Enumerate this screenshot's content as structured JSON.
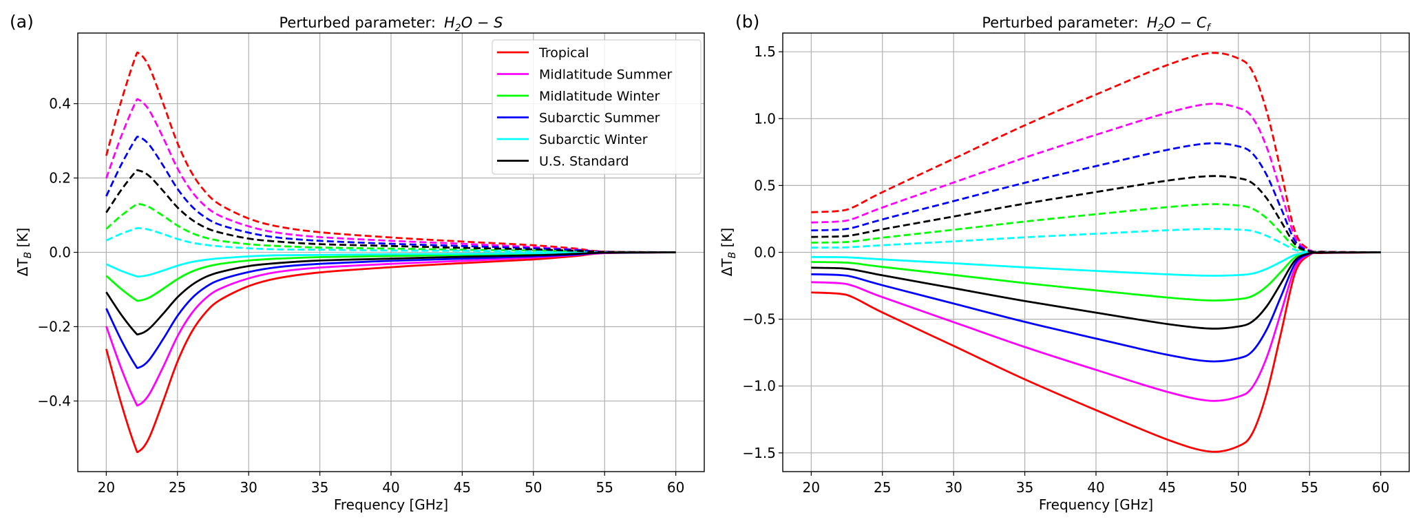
{
  "chart_data": [
    {
      "type": "line",
      "panel_label": "(a)",
      "title": {
        "prefix": "Perturbed parameter:",
        "param_base": "H",
        "param_sub": "2",
        "param_rest": "O − S",
        "param_sub2": ""
      },
      "xlabel": "Frequency [GHz]",
      "ylabel": {
        "main": "ΔT",
        "sub": "B",
        "unit": " [K]"
      },
      "xlim": [
        18,
        62
      ],
      "ylim": [
        -0.59,
        0.59
      ],
      "xticks": [
        20,
        25,
        30,
        35,
        40,
        45,
        50,
        55,
        60
      ],
      "xtick_labels": [
        "20",
        "25",
        "30",
        "35",
        "40",
        "45",
        "50",
        "55",
        "60"
      ],
      "yticks": [
        -0.4,
        -0.2,
        0.0,
        0.2,
        0.4
      ],
      "ytick_labels": [
        "−0.4",
        "−0.2",
        "0.0",
        "0.2",
        "0.4"
      ],
      "grid": true,
      "legend": {
        "placement": "top-right"
      },
      "note": "dashed = positive perturbation, solid = negative perturbation",
      "x": [
        20,
        21,
        22,
        22.3,
        23,
        24,
        25,
        26,
        27,
        28,
        30,
        32,
        35,
        40,
        45,
        50,
        53,
        55,
        60
      ],
      "series": [
        {
          "name": "Tropical",
          "color": "#ff0000",
          "dashed": [
            0.26,
            0.4,
            0.52,
            0.535,
            0.5,
            0.4,
            0.294,
            0.214,
            0.161,
            0.128,
            0.091,
            0.07,
            0.054,
            0.04,
            0.029,
            0.019,
            0.01,
            0.002,
            0
          ],
          "solid": [
            -0.26,
            -0.4,
            -0.52,
            -0.535,
            -0.5,
            -0.4,
            -0.294,
            -0.214,
            -0.161,
            -0.128,
            -0.091,
            -0.07,
            -0.054,
            -0.04,
            -0.029,
            -0.019,
            -0.01,
            -0.002,
            0
          ]
        },
        {
          "name": "Midlatitude Summer",
          "color": "#ff00ff",
          "dashed": [
            0.199,
            0.307,
            0.399,
            0.41,
            0.383,
            0.308,
            0.226,
            0.164,
            0.123,
            0.098,
            0.07,
            0.053,
            0.041,
            0.031,
            0.023,
            0.014,
            0.007,
            0.002,
            0
          ],
          "solid": [
            -0.199,
            -0.307,
            -0.399,
            -0.41,
            -0.383,
            -0.308,
            -0.226,
            -0.164,
            -0.123,
            -0.098,
            -0.07,
            -0.053,
            -0.041,
            -0.031,
            -0.023,
            -0.014,
            -0.007,
            -0.002,
            0
          ]
        },
        {
          "name": "Midlatitude Winter",
          "color": "#00ff00",
          "dashed": [
            0.063,
            0.097,
            0.126,
            0.13,
            0.122,
            0.098,
            0.072,
            0.052,
            0.039,
            0.031,
            0.022,
            0.017,
            0.013,
            0.01,
            0.007,
            0.005,
            0.002,
            0.001,
            0
          ],
          "solid": [
            -0.063,
            -0.097,
            -0.126,
            -0.13,
            -0.122,
            -0.098,
            -0.072,
            -0.052,
            -0.039,
            -0.031,
            -0.022,
            -0.017,
            -0.013,
            -0.01,
            -0.007,
            -0.005,
            -0.002,
            -0.001,
            0
          ]
        },
        {
          "name": "Subarctic Summer",
          "color": "#0000ff",
          "dashed": [
            0.151,
            0.232,
            0.301,
            0.31,
            0.29,
            0.233,
            0.171,
            0.124,
            0.093,
            0.074,
            0.053,
            0.04,
            0.031,
            0.023,
            0.017,
            0.011,
            0.006,
            0.001,
            0
          ],
          "solid": [
            -0.151,
            -0.232,
            -0.301,
            -0.31,
            -0.29,
            -0.233,
            -0.171,
            -0.124,
            -0.093,
            -0.074,
            -0.053,
            -0.04,
            -0.031,
            -0.023,
            -0.017,
            -0.011,
            -0.006,
            -0.001,
            0
          ]
        },
        {
          "name": "Subarctic Winter",
          "color": "#00ffff",
          "dashed": [
            0.032,
            0.049,
            0.063,
            0.065,
            0.061,
            0.049,
            0.036,
            0.026,
            0.02,
            0.016,
            0.011,
            0.008,
            0.007,
            0.005,
            0.004,
            0.002,
            0.001,
            0,
            0
          ],
          "solid": [
            -0.032,
            -0.049,
            -0.063,
            -0.065,
            -0.061,
            -0.049,
            -0.036,
            -0.026,
            -0.02,
            -0.016,
            -0.011,
            -0.008,
            -0.007,
            -0.005,
            -0.004,
            -0.002,
            -0.001,
            0,
            0
          ]
        },
        {
          "name": "U.S. Standard",
          "color": "#000000",
          "dashed": [
            0.107,
            0.165,
            0.214,
            0.22,
            0.206,
            0.165,
            0.121,
            0.088,
            0.066,
            0.053,
            0.037,
            0.029,
            0.022,
            0.017,
            0.012,
            0.008,
            0.004,
            0.001,
            0
          ],
          "solid": [
            -0.107,
            -0.165,
            -0.214,
            -0.22,
            -0.206,
            -0.165,
            -0.121,
            -0.088,
            -0.066,
            -0.053,
            -0.037,
            -0.029,
            -0.022,
            -0.017,
            -0.012,
            -0.008,
            -0.004,
            -0.001,
            0
          ]
        }
      ]
    },
    {
      "type": "line",
      "panel_label": "(b)",
      "title": {
        "prefix": "Perturbed parameter:",
        "param_base": "H",
        "param_sub": "2",
        "param_rest": "O − C",
        "param_sub2": "f"
      },
      "xlabel": "Frequency [GHz]",
      "ylabel": {
        "main": "ΔT",
        "sub": "B",
        "unit": " [K]"
      },
      "xlim": [
        18,
        62
      ],
      "ylim": [
        -1.64,
        1.64
      ],
      "xticks": [
        20,
        25,
        30,
        35,
        40,
        45,
        50,
        55,
        60
      ],
      "xtick_labels": [
        "20",
        "25",
        "30",
        "35",
        "40",
        "45",
        "50",
        "55",
        "60"
      ],
      "yticks": [
        -1.5,
        -1.0,
        -0.5,
        0.0,
        0.5,
        1.0,
        1.5
      ],
      "ytick_labels": [
        "−1.5",
        "−1.0",
        "−0.5",
        "0.0",
        "0.5",
        "1.0",
        "1.5"
      ],
      "grid": true,
      "x": [
        20,
        22,
        23,
        25,
        30,
        35,
        40,
        45,
        48,
        50,
        51,
        52,
        53,
        54,
        55,
        56,
        60
      ],
      "series": [
        {
          "name": "Tropical",
          "color": "#ff0000",
          "dashed": [
            0.3,
            0.31,
            0.34,
            0.45,
            0.7,
            0.95,
            1.18,
            1.4,
            1.49,
            1.45,
            1.35,
            1.05,
            0.6,
            0.15,
            0.02,
            0.005,
            0
          ],
          "solid": [
            -0.3,
            -0.31,
            -0.34,
            -0.45,
            -0.7,
            -0.95,
            -1.18,
            -1.4,
            -1.49,
            -1.45,
            -1.35,
            -1.05,
            -0.6,
            -0.15,
            -0.02,
            -0.005,
            0
          ]
        },
        {
          "name": "Midlatitude Summer",
          "color": "#ff00ff",
          "dashed": [
            0.223,
            0.231,
            0.253,
            0.335,
            0.522,
            0.708,
            0.879,
            1.043,
            1.11,
            1.08,
            1.006,
            0.783,
            0.447,
            0.112,
            0.014,
            0.003,
            0
          ],
          "solid": [
            -0.223,
            -0.231,
            -0.253,
            -0.335,
            -0.522,
            -0.708,
            -0.879,
            -1.043,
            -1.11,
            -1.08,
            -1.006,
            -0.783,
            -0.447,
            -0.112,
            -0.014,
            -0.003,
            0
          ]
        },
        {
          "name": "Midlatitude Winter",
          "color": "#00ff00",
          "dashed": [
            0.072,
            0.075,
            0.082,
            0.109,
            0.169,
            0.23,
            0.285,
            0.338,
            0.36,
            0.35,
            0.326,
            0.254,
            0.145,
            0.036,
            0.005,
            0.001,
            0
          ],
          "solid": [
            -0.072,
            -0.075,
            -0.082,
            -0.109,
            -0.169,
            -0.23,
            -0.285,
            -0.338,
            -0.36,
            -0.35,
            -0.326,
            -0.254,
            -0.145,
            -0.036,
            -0.005,
            -0.001,
            0
          ]
        },
        {
          "name": "Subarctic Summer",
          "color": "#0000ff",
          "dashed": [
            0.164,
            0.17,
            0.186,
            0.246,
            0.383,
            0.52,
            0.645,
            0.766,
            0.815,
            0.793,
            0.738,
            0.575,
            0.328,
            0.082,
            0.011,
            0.002,
            0
          ],
          "solid": [
            -0.164,
            -0.17,
            -0.186,
            -0.246,
            -0.383,
            -0.52,
            -0.645,
            -0.766,
            -0.815,
            -0.793,
            -0.738,
            -0.575,
            -0.328,
            -0.082,
            -0.011,
            -0.002,
            0
          ]
        },
        {
          "name": "Subarctic Winter",
          "color": "#00ffff",
          "dashed": [
            0.035,
            0.036,
            0.04,
            0.053,
            0.082,
            0.112,
            0.139,
            0.165,
            0.175,
            0.17,
            0.159,
            0.123,
            0.071,
            0.018,
            0.002,
            0.001,
            0
          ],
          "solid": [
            -0.035,
            -0.036,
            -0.04,
            -0.053,
            -0.082,
            -0.112,
            -0.139,
            -0.165,
            -0.175,
            -0.17,
            -0.159,
            -0.123,
            -0.071,
            -0.018,
            -0.002,
            -0.001,
            0
          ]
        },
        {
          "name": "U.S. Standard",
          "color": "#000000",
          "dashed": [
            0.115,
            0.119,
            0.13,
            0.172,
            0.268,
            0.364,
            0.451,
            0.536,
            0.57,
            0.555,
            0.516,
            0.402,
            0.23,
            0.058,
            0.007,
            0.002,
            0
          ],
          "solid": [
            -0.115,
            -0.119,
            -0.13,
            -0.172,
            -0.268,
            -0.364,
            -0.451,
            -0.536,
            -0.57,
            -0.555,
            -0.516,
            -0.402,
            -0.23,
            -0.058,
            -0.007,
            -0.002,
            0
          ]
        }
      ]
    }
  ]
}
